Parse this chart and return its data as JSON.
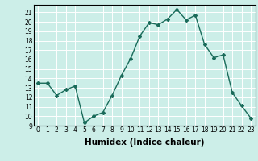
{
  "x": [
    0,
    1,
    2,
    3,
    4,
    5,
    6,
    7,
    8,
    9,
    10,
    11,
    12,
    13,
    14,
    15,
    16,
    17,
    18,
    19,
    20,
    21,
    22,
    23
  ],
  "y": [
    13.5,
    13.5,
    12.2,
    12.8,
    13.2,
    9.3,
    10.0,
    10.4,
    12.2,
    14.3,
    16.1,
    18.5,
    19.9,
    19.7,
    20.3,
    21.3,
    20.2,
    20.7,
    17.6,
    16.2,
    16.5,
    12.5,
    11.1,
    9.8
  ],
  "line_color": "#1a6b5a",
  "marker": "D",
  "marker_size": 2,
  "bg_color": "#cceee8",
  "grid_color": "#ffffff",
  "xlabel": "Humidex (Indice chaleur)",
  "xlim": [
    -0.5,
    23.5
  ],
  "ylim": [
    9,
    21.8
  ],
  "yticks": [
    9,
    10,
    11,
    12,
    13,
    14,
    15,
    16,
    17,
    18,
    19,
    20,
    21
  ],
  "xticks": [
    0,
    1,
    2,
    3,
    4,
    5,
    6,
    7,
    8,
    9,
    10,
    11,
    12,
    13,
    14,
    15,
    16,
    17,
    18,
    19,
    20,
    21,
    22,
    23
  ],
  "tick_fontsize": 5.5,
  "xlabel_fontsize": 7.5,
  "linewidth": 1.0
}
